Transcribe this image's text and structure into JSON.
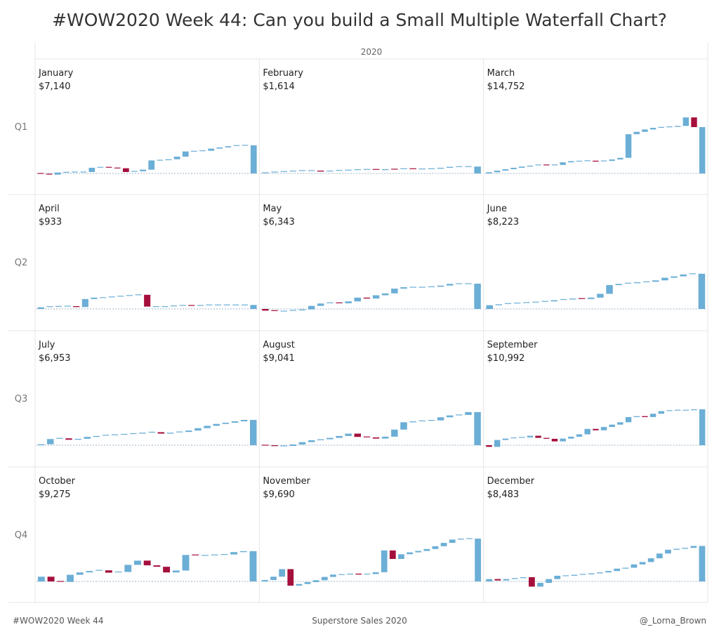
{
  "title": "#WOW2020 Week 44: Can you build a Small Multiple Waterfall Chart?",
  "column_header": "2020",
  "footer": {
    "left": "#WOW2020 Week 44",
    "center": "Superstore Sales 2020",
    "right": "@_Lorna_Brown"
  },
  "colors": {
    "positive": "#6baed6",
    "negative": "#a50f3c",
    "grid": "#e6e6e6",
    "baseline": "#9fb3c8"
  },
  "chart_data": {
    "type": "bar",
    "subtype": "waterfall",
    "quarters": [
      "Q1",
      "Q2",
      "Q3",
      "Q4"
    ],
    "ymax": 15000,
    "panels": [
      {
        "month": "January",
        "total_label": "$7,140",
        "steps": [
          -150,
          -100,
          450,
          50,
          50,
          0,
          900,
          100,
          -150,
          -50,
          -800,
          150,
          350,
          1950,
          50,
          200,
          550,
          1100,
          50,
          100,
          450,
          250,
          250,
          150,
          50
        ]
      },
      {
        "month": "February",
        "total_label": "$1,614",
        "steps": [
          150,
          150,
          100,
          100,
          100,
          0,
          -200,
          100,
          150,
          50,
          100,
          50,
          -150,
          200,
          -50,
          150,
          -100,
          50,
          50,
          200,
          200,
          50,
          0
        ]
      },
      {
        "month": "March",
        "total_label": "$14,752",
        "steps": [
          250,
          350,
          300,
          300,
          250,
          200,
          150,
          -150,
          150,
          550,
          250,
          0,
          100,
          -200,
          150,
          300,
          350,
          5000,
          500,
          500,
          350,
          100,
          100,
          200,
          1800,
          -2050
        ]
      },
      {
        "month": "April",
        "total_label": "$933",
        "steps": [
          350,
          150,
          50,
          50,
          -200,
          1700,
          300,
          0,
          150,
          150,
          150,
          150,
          -2500,
          0,
          0,
          150,
          100,
          -100,
          100,
          100,
          0,
          0,
          0,
          0
        ]
      },
      {
        "month": "May",
        "total_label": "$6,343",
        "steps": [
          -350,
          -150,
          50,
          150,
          200,
          750,
          500,
          150,
          -100,
          400,
          800,
          -200,
          700,
          400,
          1000,
          300,
          0,
          0,
          100,
          250,
          350,
          50,
          0
        ]
      },
      {
        "month": "June",
        "total_label": "$8,223",
        "steps": [
          800,
          200,
          150,
          100,
          100,
          100,
          150,
          250,
          150,
          200,
          -100,
          300,
          800,
          1850,
          250,
          150,
          200,
          100,
          300,
          550,
          300,
          400,
          150
        ]
      },
      {
        "month": "July",
        "total_label": "$6,953",
        "steps": [
          200,
          1100,
          150,
          -300,
          200,
          400,
          200,
          150,
          100,
          100,
          150,
          200,
          100,
          -300,
          200,
          150,
          300,
          500,
          500,
          400,
          250,
          300,
          300
        ]
      },
      {
        "month": "August",
        "total_label": "$9,041",
        "steps": [
          -100,
          -150,
          100,
          300,
          500,
          400,
          200,
          300,
          400,
          500,
          -700,
          -100,
          -250,
          400,
          1500,
          1550,
          200,
          100,
          100,
          650,
          400,
          100,
          600
        ]
      },
      {
        "month": "September",
        "total_label": "$10,992",
        "steps": [
          -350,
          1450,
          300,
          150,
          100,
          350,
          -450,
          -200,
          -550,
          600,
          400,
          500,
          1150,
          -300,
          700,
          500,
          500,
          1100,
          200,
          -200,
          700,
          550,
          100,
          100,
          0,
          200
        ]
      },
      {
        "month": "October",
        "total_label": "$9,275",
        "steps": [
          1000,
          -1000,
          -100,
          1500,
          500,
          300,
          150,
          -500,
          150,
          1500,
          900,
          -1000,
          -300,
          -1200,
          400,
          3300,
          -100,
          0,
          100,
          100,
          500,
          200
        ]
      },
      {
        "month": "November",
        "total_label": "$9,690",
        "steps": [
          300,
          700,
          1600,
          -3500,
          350,
          400,
          400,
          700,
          500,
          0,
          200,
          -200,
          100,
          400,
          4600,
          -1800,
          1000,
          400,
          300,
          400,
          600,
          700,
          700,
          200,
          0
        ]
      },
      {
        "month": "December",
        "total_label": "$8,483",
        "steps": [
          500,
          -300,
          300,
          200,
          200,
          -2000,
          800,
          800,
          700,
          0,
          200,
          100,
          200,
          200,
          300,
          500,
          200,
          700,
          500,
          800,
          1000,
          800,
          200,
          200,
          400
        ]
      }
    ]
  }
}
